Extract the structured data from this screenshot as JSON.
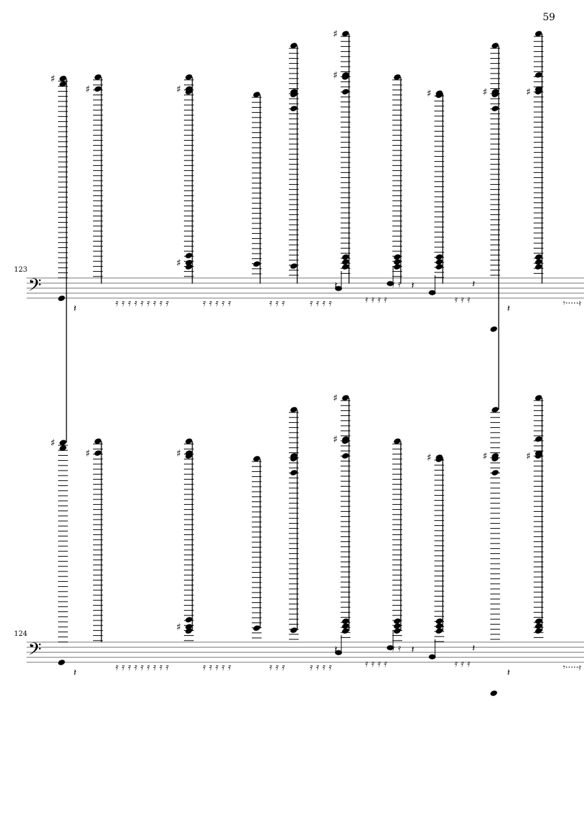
{
  "page_number": "59",
  "systems": [
    {
      "measure_number": "123",
      "clef": "bass"
    },
    {
      "measure_number": "124",
      "clef": "bass"
    }
  ]
}
